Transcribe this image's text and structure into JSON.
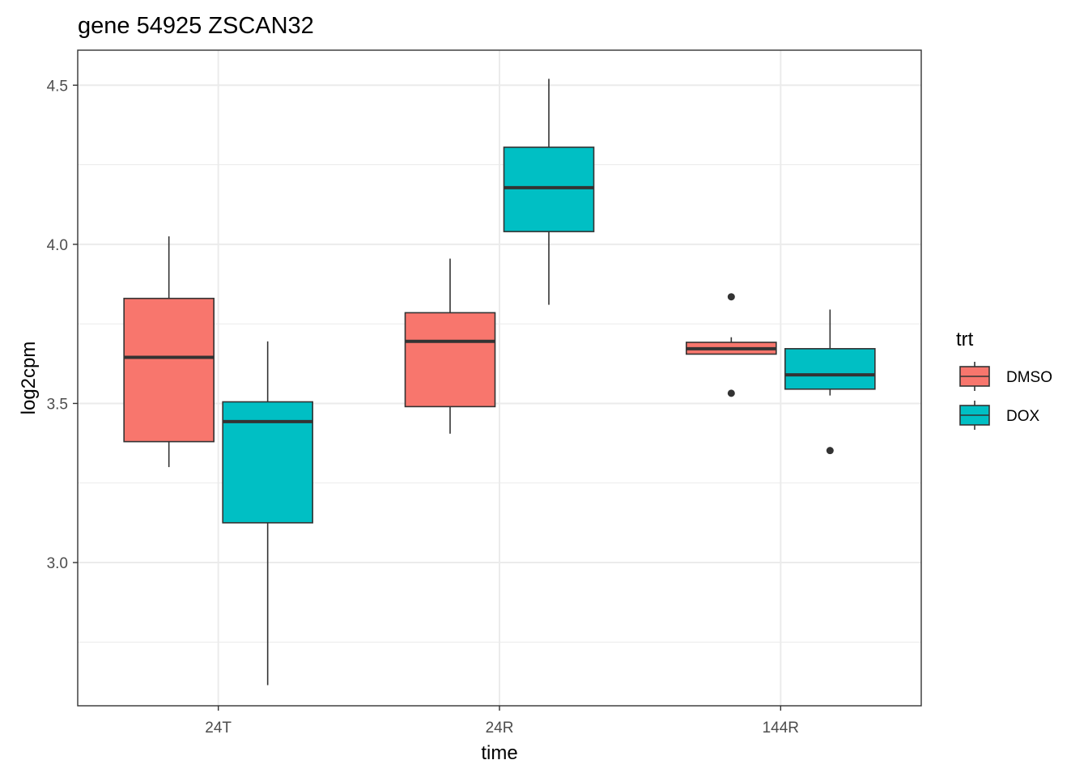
{
  "chart_data": {
    "type": "boxplot",
    "title": "gene 54925 ZSCAN32",
    "xlabel": "time",
    "ylabel": "log2cpm",
    "categories": [
      "24T",
      "24R",
      "144R"
    ],
    "ylim": [
      2.55,
      4.61
    ],
    "yticks": [
      3.0,
      3.5,
      4.0,
      4.5
    ],
    "ytick_labels": [
      "3.0",
      "3.5",
      "4.0",
      "4.5"
    ],
    "grid": true,
    "legend": {
      "title": "trt",
      "position": "right",
      "entries": [
        "DMSO",
        "DOX"
      ]
    },
    "series": [
      {
        "name": "DMSO",
        "color": "#f8766d",
        "boxes": [
          {
            "category": "24T",
            "min": 3.3,
            "q1": 3.38,
            "median": 3.645,
            "q3": 3.83,
            "max": 4.025,
            "outliers": []
          },
          {
            "category": "24R",
            "min": 3.405,
            "q1": 3.49,
            "median": 3.695,
            "q3": 3.785,
            "max": 3.955,
            "outliers": []
          },
          {
            "category": "144R",
            "min": 3.655,
            "q1": 3.655,
            "median": 3.672,
            "q3": 3.692,
            "max": 3.708,
            "outliers": [
              3.835,
              3.532
            ]
          }
        ]
      },
      {
        "name": "DOX",
        "color": "#00bfc4",
        "boxes": [
          {
            "category": "24T",
            "min": 2.615,
            "q1": 3.125,
            "median": 3.443,
            "q3": 3.505,
            "max": 3.695,
            "outliers": []
          },
          {
            "category": "24R",
            "min": 3.81,
            "q1": 4.04,
            "median": 4.178,
            "q3": 4.305,
            "max": 4.52,
            "outliers": []
          },
          {
            "category": "144R",
            "min": 3.525,
            "q1": 3.545,
            "median": 3.59,
            "q3": 3.672,
            "max": 3.795,
            "outliers": [
              3.352
            ]
          }
        ]
      }
    ]
  }
}
